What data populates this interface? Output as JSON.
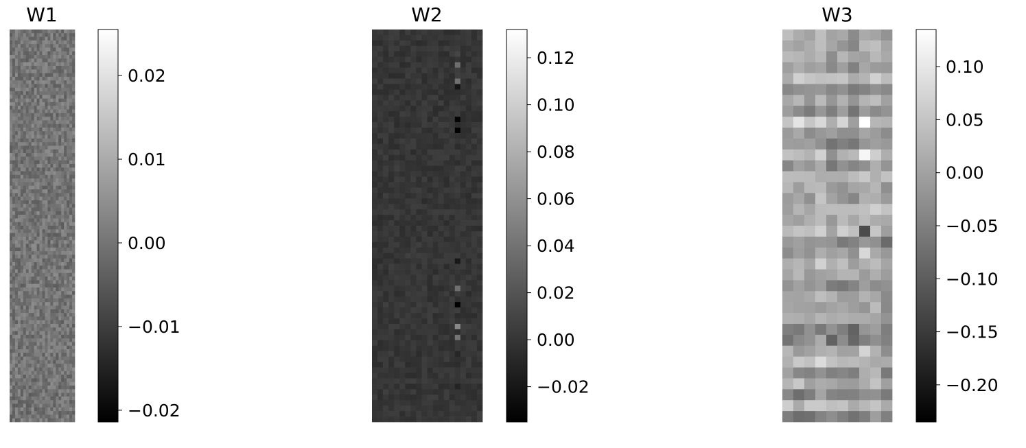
{
  "chart_data": [
    {
      "type": "heatmap",
      "title": "W1",
      "colormap": "gray",
      "colorbar": {
        "ticks": [
          0.02,
          0.01,
          0.0,
          -0.01,
          -0.02
        ],
        "tick_labels": [
          "0.02",
          "0.01",
          "0.00",
          "−0.01",
          "−0.02"
        ],
        "range": [
          -0.0214,
          0.0255
        ]
      },
      "matrix": {
        "rows": 108,
        "cols": 24,
        "center": 0.0,
        "spread": 0.0045,
        "spike": 0.0,
        "col_spike": 0,
        "row_tone": 0.0,
        "col_tone": 0.0
      }
    },
    {
      "type": "heatmap",
      "title": "W2",
      "colormap": "gray",
      "colorbar": {
        "ticks": [
          0.12,
          0.1,
          0.08,
          0.06,
          0.04,
          0.02,
          0.0,
          -0.02
        ],
        "tick_labels": [
          "0.12",
          "0.10",
          "0.08",
          "0.06",
          "0.04",
          "0.02",
          "0.00",
          "−0.02"
        ],
        "range": [
          -0.035,
          0.132
        ]
      },
      "matrix": {
        "rows": 72,
        "cols": 20,
        "center": 0.0,
        "spread": 0.006,
        "spike": 0.05,
        "col_spike": 15,
        "row_tone": 0.0,
        "col_tone": 0.0
      }
    },
    {
      "type": "heatmap",
      "title": "W3",
      "colormap": "gray",
      "colorbar": {
        "ticks": [
          0.1,
          0.05,
          0.0,
          -0.05,
          -0.1,
          -0.15,
          -0.2
        ],
        "tick_labels": [
          "0.10",
          "0.05",
          "0.00",
          "−0.05",
          "−0.10",
          "−0.15",
          "−0.20"
        ],
        "range": [
          -0.235,
          0.135
        ]
      },
      "matrix": {
        "rows": 36,
        "cols": 10,
        "center": 0.0,
        "spread": 0.03,
        "spike": 0.18,
        "col_spike": 7,
        "row_tone": 0.05,
        "col_tone": 0.02
      }
    }
  ]
}
